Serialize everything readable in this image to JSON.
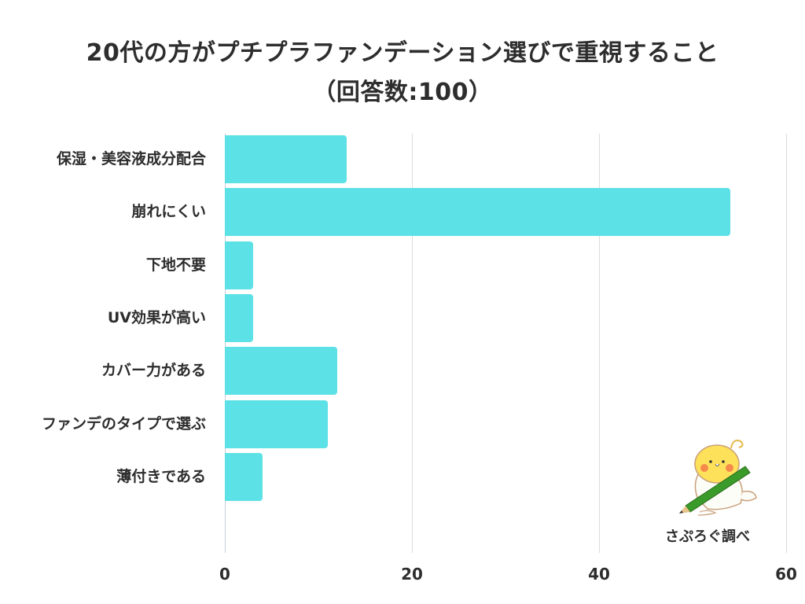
{
  "title": {
    "line1": "20代の方がプチプラファンデーション選びで重視すること",
    "line2": "（回答数:100）"
  },
  "colors": {
    "bar": "#5ce1e6",
    "grid": "#dcdcdc",
    "text": "#2d2d2d"
  },
  "x_ticks": [
    "0",
    "20",
    "40",
    "60"
  ],
  "credit": "さぷろぐ調べ",
  "chart_data": {
    "type": "bar",
    "orientation": "horizontal",
    "title": "20代の方がプチプラファンデーション選びで重視すること（回答数:100）",
    "categories": [
      "保湿・美容液成分配合",
      "崩れにくい",
      "下地不要",
      "UV効果が高い",
      "カバー力がある",
      "ファンデのタイプで選ぶ",
      "薄付きである"
    ],
    "values": [
      13,
      54,
      3,
      3,
      12,
      11,
      4
    ],
    "xlabel": "",
    "ylabel": "",
    "xlim": [
      0,
      60
    ],
    "x_ticks": [
      0,
      20,
      40,
      60
    ],
    "grid": true,
    "legend": null
  }
}
